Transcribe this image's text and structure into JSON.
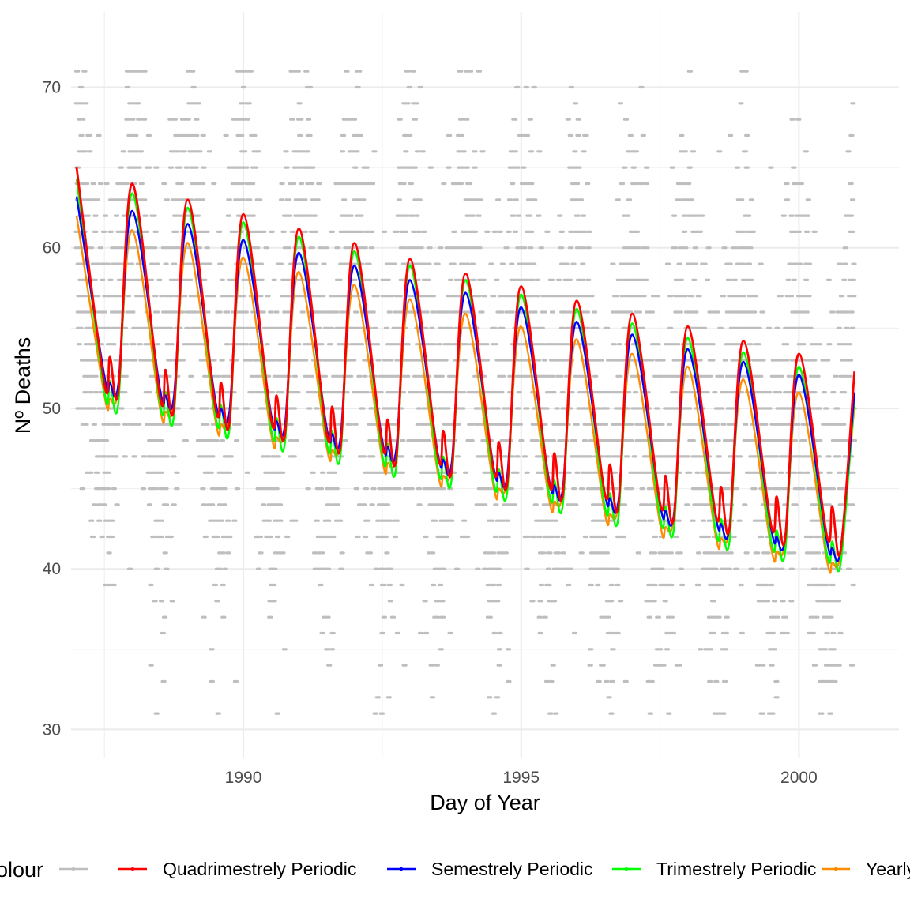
{
  "chart_data": {
    "type": "line",
    "xlabel": "Day of Year",
    "ylabel": "Nº Deaths",
    "xlim": [
      1986.9,
      2001.8
    ],
    "ylim": [
      28.2,
      74.7
    ],
    "x_ticks": [
      1990,
      1995,
      2000
    ],
    "x_tick_labels": [
      "1990",
      "1995",
      "2000"
    ],
    "y_ticks": [
      30,
      40,
      50,
      60,
      70
    ],
    "y_tick_labels": [
      "30",
      "40",
      "50",
      "60",
      "70"
    ],
    "grid": true,
    "background": "#ffffff",
    "legend": {
      "position": "bottom",
      "title": "colour",
      "entries": [
        {
          "label": "",
          "color": "#bebebe"
        },
        {
          "label": "Quadrimestrely Periodic",
          "color": "#ff0000"
        },
        {
          "label": "Semestrely Periodic",
          "color": "#0000ff"
        },
        {
          "label": "Trimestrely Periodic",
          "color": "#00ff00"
        },
        {
          "label": "Yearly Periodic",
          "color": "#ff8c00"
        }
      ]
    },
    "observations": {
      "color": "#bebebe",
      "x_start": 1987.0,
      "x_end": 2001.0,
      "value_range": [
        31,
        71
      ],
      "description_points": "daily observed deaths, approx 5100 points"
    },
    "series": [
      {
        "name": "Quadrimestrely Periodic",
        "color": "#ff0000",
        "x": [
          1987.0,
          1987.5,
          1987.6,
          1987.75,
          1988.0,
          1988.5,
          1988.6,
          1988.75,
          1989.0,
          1989.5,
          1989.6,
          1989.75,
          1990.0,
          1990.5,
          1990.6,
          1990.75,
          1991.0,
          1991.5,
          1991.6,
          1991.75,
          1992.0,
          1992.5,
          1992.6,
          1992.75,
          1993.0,
          1993.5,
          1993.6,
          1993.75,
          1994.0,
          1994.5,
          1994.6,
          1994.75,
          1995.0,
          1995.5,
          1995.6,
          1995.75,
          1996.0,
          1996.5,
          1996.6,
          1996.75,
          1997.0,
          1997.5,
          1997.6,
          1997.75,
          1998.0,
          1998.5,
          1998.6,
          1998.75,
          1999.0,
          1999.5,
          1999.6,
          1999.75,
          2000.0,
          2000.5,
          2000.6,
          2000.75,
          2001.0
        ],
        "values": [
          65.0,
          51.5,
          53.2,
          51.0,
          64.0,
          50.7,
          52.4,
          50.0,
          63.0,
          50.0,
          51.6,
          49.1,
          62.1,
          49.3,
          50.8,
          48.4,
          61.2,
          48.4,
          50.1,
          47.6,
          60.3,
          47.7,
          49.3,
          46.8,
          59.3,
          47.0,
          48.6,
          46.1,
          58.4,
          46.2,
          47.9,
          45.3,
          57.6,
          45.4,
          47.2,
          44.6,
          56.7,
          44.8,
          46.5,
          43.9,
          55.9,
          44.1,
          45.8,
          43.2,
          55.1,
          43.4,
          45.1,
          42.5,
          54.2,
          42.7,
          44.5,
          41.8,
          53.4,
          42.1,
          43.9,
          41.1,
          52.3
        ]
      },
      {
        "name": "Semestrely Periodic",
        "color": "#0000ff",
        "x": [
          1987.0,
          1987.5,
          1987.6,
          1987.75,
          1988.0,
          1988.5,
          1988.6,
          1988.75,
          1989.0,
          1989.5,
          1989.6,
          1989.75,
          1990.0,
          1990.5,
          1990.6,
          1990.75,
          1991.0,
          1991.5,
          1991.6,
          1991.75,
          1992.0,
          1992.5,
          1992.6,
          1992.75,
          1993.0,
          1993.5,
          1993.6,
          1993.75,
          1994.0,
          1994.5,
          1994.6,
          1994.75,
          1995.0,
          1995.5,
          1995.6,
          1995.75,
          1996.0,
          1996.5,
          1996.6,
          1996.75,
          1997.0,
          1997.5,
          1997.6,
          1997.75,
          1998.0,
          1998.5,
          1998.6,
          1998.75,
          1999.0,
          1999.5,
          1999.6,
          1999.75,
          2000.0,
          2000.5,
          2000.6,
          2000.75,
          2001.0
        ],
        "values": [
          63.2,
          52.0,
          51.6,
          51.5,
          62.3,
          51.2,
          50.8,
          50.7,
          61.5,
          50.4,
          50.0,
          49.8,
          60.5,
          49.6,
          49.2,
          49.0,
          59.7,
          48.8,
          48.4,
          48.2,
          58.9,
          48.0,
          47.6,
          47.4,
          58.0,
          47.2,
          46.8,
          46.6,
          57.2,
          46.4,
          46.0,
          45.8,
          56.3,
          45.6,
          45.2,
          45.0,
          55.4,
          44.8,
          44.4,
          44.2,
          54.6,
          44.0,
          43.6,
          43.4,
          53.7,
          43.3,
          42.8,
          42.6,
          52.9,
          42.5,
          42.0,
          41.9,
          52.1,
          41.8,
          41.3,
          41.2,
          51.0
        ]
      },
      {
        "name": "Trimestrely Periodic",
        "color": "#00ff00",
        "x": [
          1987.0,
          1987.5,
          1987.6,
          1987.75,
          1988.0,
          1988.5,
          1988.6,
          1988.75,
          1989.0,
          1989.5,
          1989.6,
          1989.75,
          1990.0,
          1990.5,
          1990.6,
          1990.75,
          1991.0,
          1991.5,
          1991.6,
          1991.75,
          1992.0,
          1992.5,
          1992.6,
          1992.75,
          1993.0,
          1993.5,
          1993.6,
          1993.75,
          1994.0,
          1994.5,
          1994.6,
          1994.75,
          1995.0,
          1995.5,
          1995.6,
          1995.75,
          1996.0,
          1996.5,
          1996.6,
          1996.75,
          1997.0,
          1997.5,
          1997.6,
          1997.75,
          1998.0,
          1998.5,
          1998.6,
          1998.75,
          1999.0,
          1999.5,
          1999.6,
          1999.75,
          2000.0,
          2000.5,
          2000.6,
          2000.75,
          2001.0
        ],
        "values": [
          64.3,
          51.0,
          51.7,
          50.3,
          63.4,
          50.3,
          51.0,
          49.5,
          62.5,
          49.5,
          50.2,
          48.7,
          61.6,
          48.7,
          49.4,
          47.9,
          60.7,
          47.9,
          48.6,
          47.1,
          59.8,
          47.1,
          47.8,
          46.3,
          58.9,
          46.3,
          47.0,
          45.6,
          58.0,
          45.5,
          46.2,
          44.8,
          57.1,
          44.8,
          45.5,
          44.0,
          56.2,
          44.0,
          44.7,
          43.2,
          55.3,
          43.2,
          43.9,
          42.5,
          54.4,
          42.4,
          43.1,
          41.7,
          53.5,
          41.7,
          42.4,
          41.0,
          52.6,
          41.0,
          41.7,
          40.3,
          50.8
        ]
      },
      {
        "name": "Yearly Periodic",
        "color": "#ff8c00",
        "x": [
          1987.0,
          1987.5,
          1987.6,
          1987.75,
          1988.0,
          1988.5,
          1988.6,
          1988.75,
          1989.0,
          1989.5,
          1989.6,
          1989.75,
          1990.0,
          1990.5,
          1990.6,
          1990.75,
          1991.0,
          1991.5,
          1991.6,
          1991.75,
          1992.0,
          1992.5,
          1992.6,
          1992.75,
          1993.0,
          1993.5,
          1993.6,
          1993.75,
          1994.0,
          1994.5,
          1994.6,
          1994.75,
          1995.0,
          1995.5,
          1995.6,
          1995.75,
          1996.0,
          1996.5,
          1996.6,
          1996.75,
          1997.0,
          1997.5,
          1997.6,
          1997.75,
          1998.0,
          1998.5,
          1998.6,
          1998.75,
          1999.0,
          1999.5,
          1999.6,
          1999.75,
          2000.0,
          2000.5,
          2000.6,
          2000.75,
          2001.0
        ],
        "values": [
          62.0,
          50.8,
          50.6,
          51.2,
          61.1,
          50.0,
          49.8,
          50.4,
          60.3,
          49.2,
          49.0,
          49.6,
          59.4,
          48.4,
          48.2,
          48.8,
          58.5,
          47.6,
          47.4,
          48.0,
          57.7,
          46.8,
          46.6,
          47.2,
          56.8,
          46.0,
          45.8,
          46.4,
          55.9,
          45.2,
          45.0,
          45.6,
          55.1,
          44.4,
          44.2,
          44.8,
          54.3,
          43.6,
          43.4,
          44.0,
          53.4,
          42.8,
          42.6,
          43.2,
          52.6,
          42.1,
          41.9,
          42.5,
          51.8,
          41.3,
          41.1,
          41.7,
          51.0,
          40.6,
          40.4,
          41.0,
          50.2
        ]
      }
    ]
  }
}
